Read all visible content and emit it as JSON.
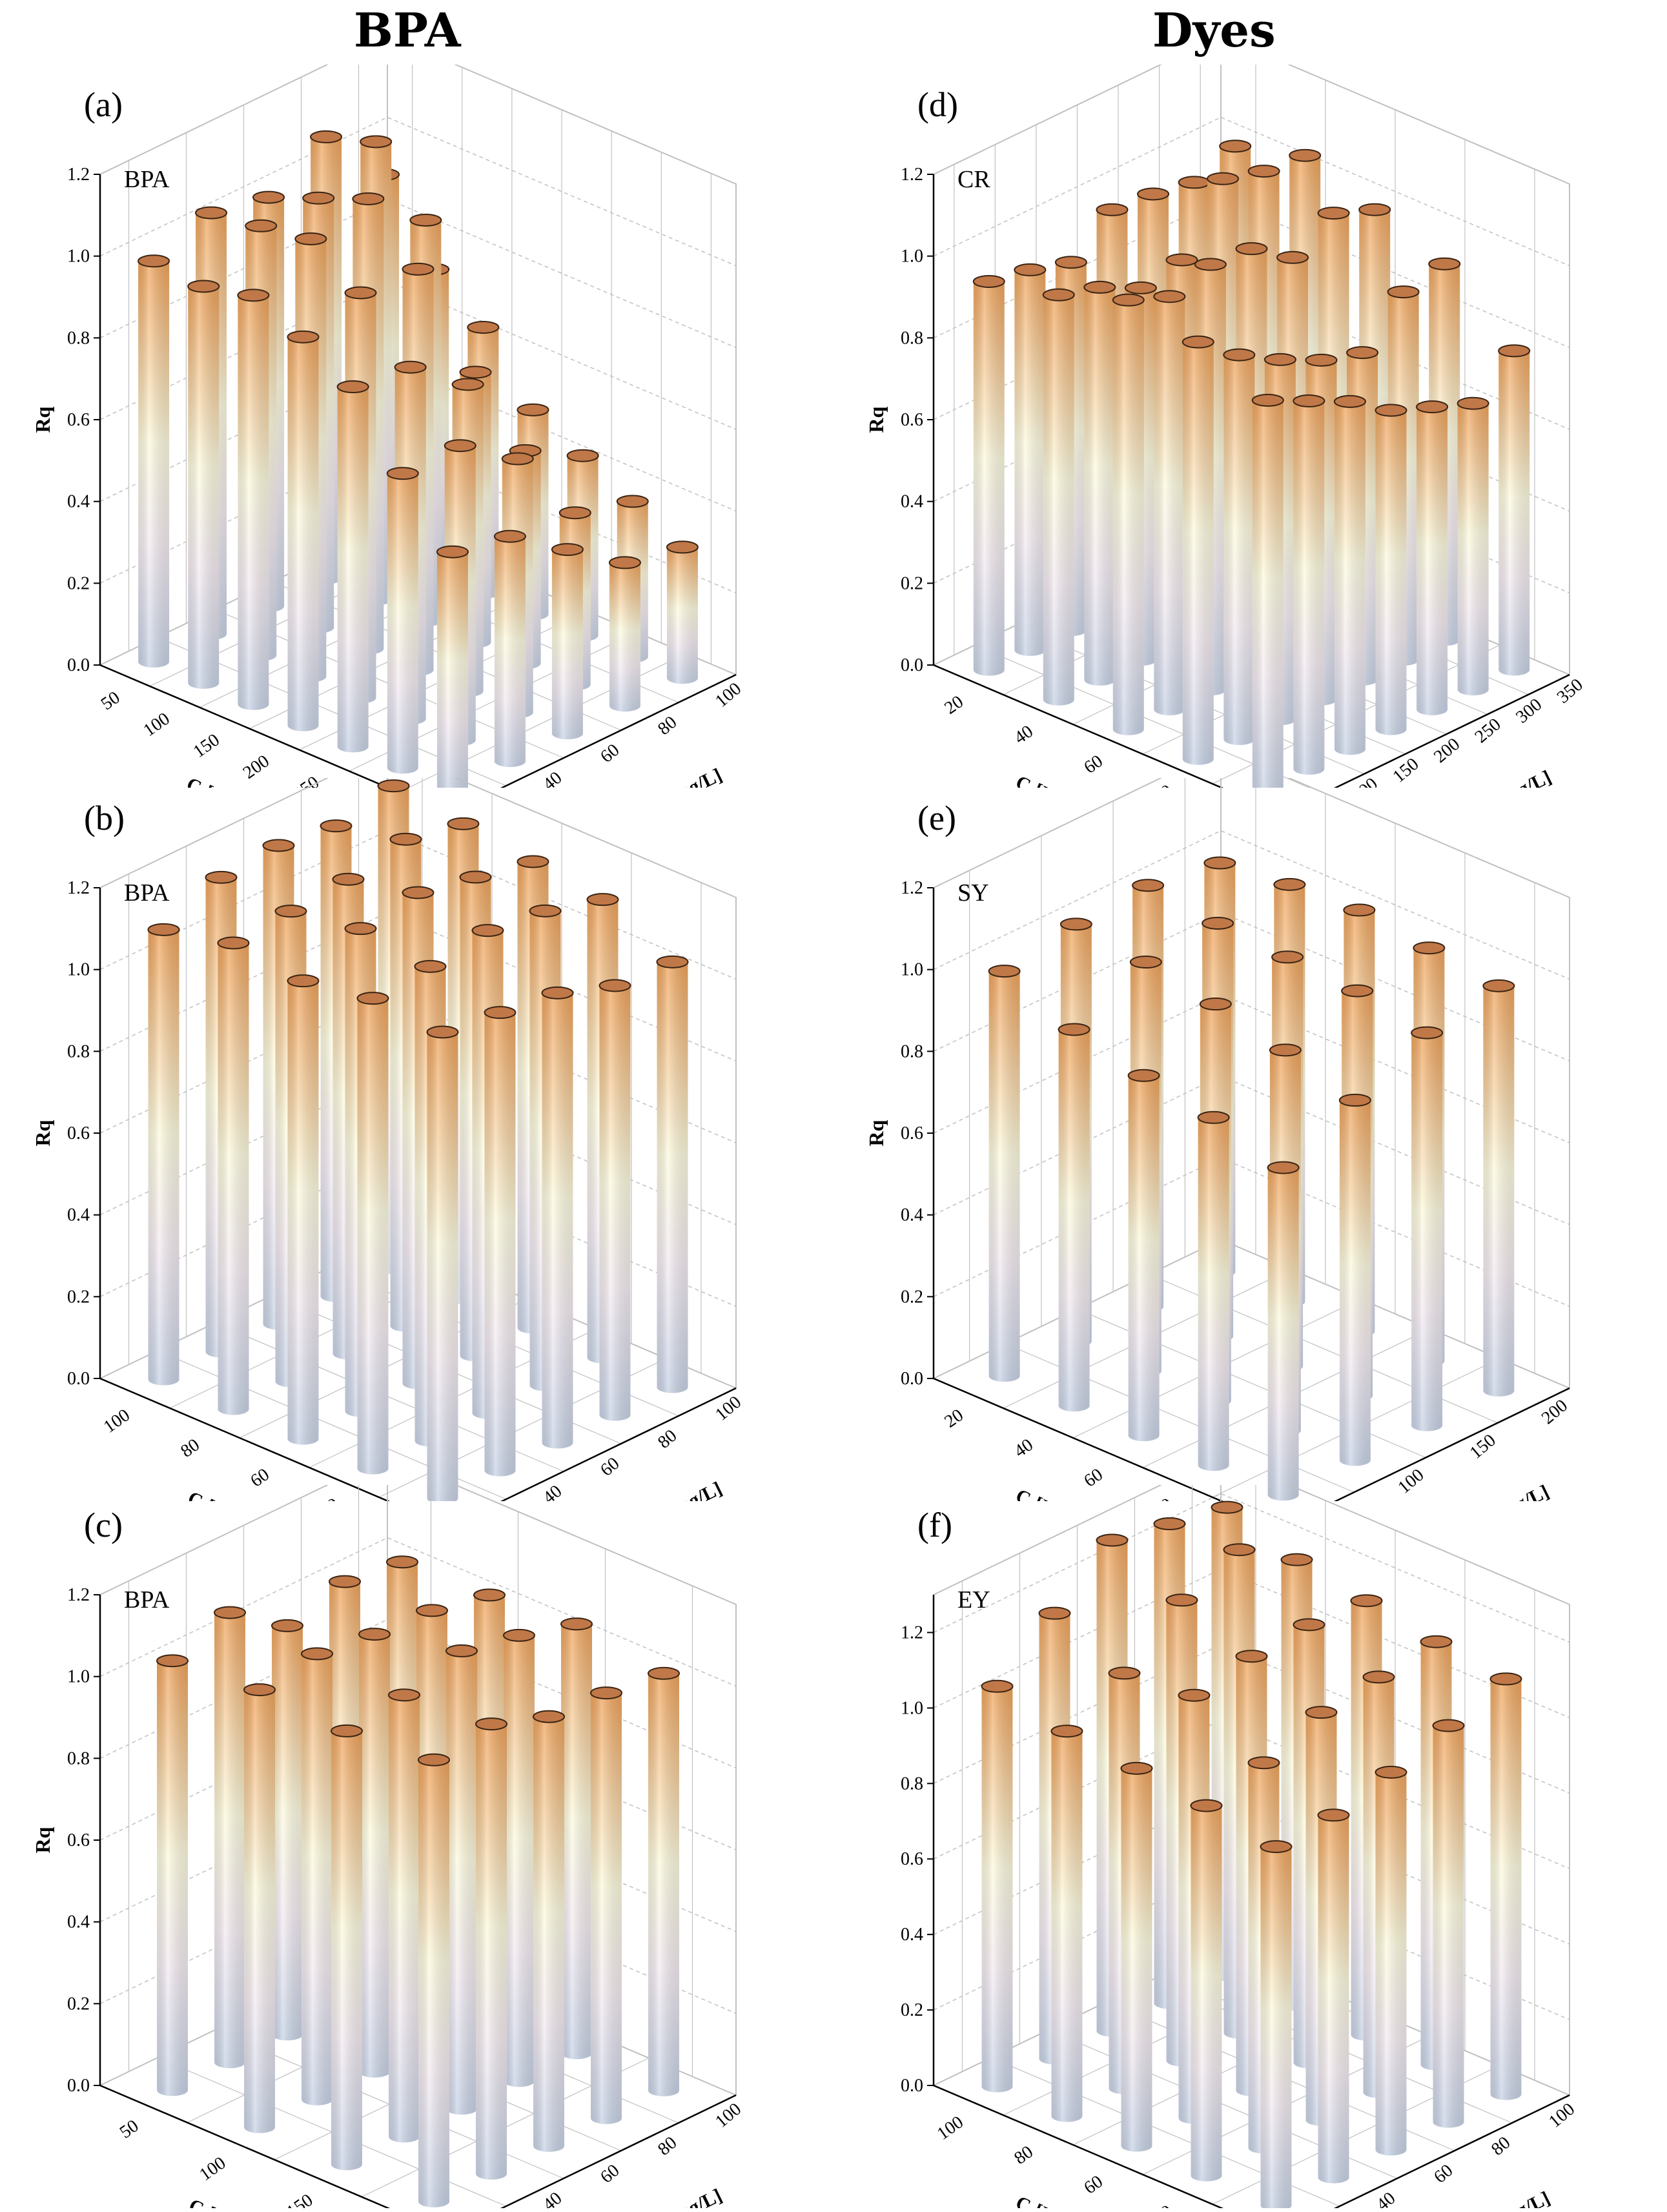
{
  "figure": {
    "col_left_title": "BPA",
    "col_right_title": "Dyes"
  },
  "colors": {
    "bar_top": "#f0a45c",
    "bar_mid": "#fdfbe0",
    "bar_low": "#f4ecf2",
    "bar_bottom": "#c8d3e6",
    "cap_fill": "#c07848",
    "axis": "#000000",
    "grid": "#c0c0c0"
  },
  "chart_data": [
    {
      "id": "a",
      "type": "bar3d-cylinder",
      "label": "(a)",
      "series_label": "BPA",
      "zlabel": "Rq",
      "zlim": [
        0,
        1.2
      ],
      "zticks": [
        "0.0",
        "0.2",
        "0.4",
        "0.6",
        "0.8",
        "1.0",
        "1.2"
      ],
      "xlabel": "C₀[CR,mg/L]",
      "xticks": [
        "50",
        "100",
        "150",
        "200",
        "250",
        "300",
        "350"
      ],
      "ylabel": "C₀[BPA,mg/L]",
      "yticks": [
        "20",
        "40",
        "60",
        "80",
        "100"
      ],
      "values": [
        [
          0.98,
          0.97,
          1.0,
          0.95,
          0.88,
          0.72,
          0.58
        ],
        [
          1.03,
          1.05,
          1.07,
          0.99,
          0.86,
          0.72,
          0.55
        ],
        [
          1.0,
          1.05,
          1.1,
          0.98,
          0.75,
          0.62,
          0.45
        ],
        [
          1.08,
          1.12,
          0.98,
          0.66,
          0.52,
          0.42,
          0.35
        ],
        [
          0.92,
          0.74,
          0.65,
          0.5,
          0.44,
          0.38,
          0.32
        ]
      ]
    },
    {
      "id": "d",
      "type": "bar3d-cylinder",
      "label": "(d)",
      "series_label": "CR",
      "zlabel": "Rq",
      "zlim": [
        0,
        1.2
      ],
      "zticks": [
        "0.0",
        "0.2",
        "0.4",
        "0.6",
        "0.8",
        "1.0",
        "1.2"
      ],
      "xlabel": "C₀[BPA,mg/L]",
      "xticks": [
        "20",
        "40",
        "60",
        "80",
        "100"
      ],
      "ylabel": "C₀[CR,mg/L]",
      "yticks": [
        "50",
        "100",
        "150",
        "200",
        "250",
        "300",
        "350"
      ],
      "values": [
        [
          0.95,
          0.99,
          1.05,
          1.02,
          0.95
        ],
        [
          0.93,
          0.96,
          1.01,
          0.94,
          0.9
        ],
        [
          0.9,
          0.91,
          1.04,
          0.88,
          0.85
        ],
        [
          0.98,
          0.93,
          1.03,
          0.83,
          0.78
        ],
        [
          0.97,
          1.08,
          0.96,
          0.8,
          0.74
        ],
        [
          0.95,
          1.05,
          1.02,
          0.9,
          0.7
        ],
        [
          0.99,
          1.04,
          0.98,
          0.92,
          0.78
        ]
      ]
    },
    {
      "id": "b",
      "type": "bar3d-cylinder",
      "label": "(b)",
      "series_label": "BPA",
      "zlabel": "Rq",
      "zlim": [
        0,
        1.2
      ],
      "zticks": [
        "0.0",
        "0.2",
        "0.4",
        "0.6",
        "0.8",
        "1.0",
        "1.2"
      ],
      "xlabel": "C₀[EY,mg/L]",
      "xticks": [
        "100",
        "80",
        "60",
        "40",
        "20"
      ],
      "ylabel": "C₀[BPA,mg/L]",
      "yticks": [
        "20",
        "40",
        "60",
        "80",
        "100"
      ],
      "values": [
        [
          1.1,
          1.14,
          1.12,
          1.15,
          1.14
        ],
        [
          1.16,
          1.15,
          1.18,
          1.16,
          1.12
        ],
        [
          1.17,
          1.16,
          1.2,
          1.18,
          1.1
        ],
        [
          1.15,
          1.19,
          1.17,
          1.16,
          1.05
        ],
        [
          1.18,
          1.16,
          1.14,
          1.12,
          1.04
        ]
      ]
    },
    {
      "id": "e",
      "type": "bar3d-cylinder",
      "label": "(e)",
      "series_label": "SY",
      "zlabel": "Rq",
      "zlim": [
        0,
        1.2
      ],
      "zticks": [
        "0.0",
        "0.2",
        "0.4",
        "0.6",
        "0.8",
        "1.0",
        "1.2"
      ],
      "xlabel": "C₀[BPA,mg/L]",
      "xticks": [
        "20",
        "40",
        "60",
        "80",
        "100"
      ],
      "ylabel": "C₀[SY,mg/L]",
      "yticks": [
        "50",
        "100",
        "150",
        "200"
      ],
      "values": [
        [
          0.99,
          0.92,
          0.88,
          0.85,
          0.8
        ],
        [
          1.02,
          1.0,
          0.97,
          0.93,
          0.88
        ],
        [
          1.03,
          1.01,
          1.0,
          0.99,
          0.96
        ],
        [
          1.0,
          1.02,
          1.03,
          1.01,
          0.99
        ]
      ]
    },
    {
      "id": "c",
      "type": "bar3d-cylinder",
      "label": "(c)",
      "series_label": "BPA",
      "zlabel": "Rq",
      "zlim": [
        0,
        1.2
      ],
      "zticks": [
        "0.0",
        "0.2",
        "0.4",
        "0.6",
        "0.8",
        "1.0",
        "1.2"
      ],
      "xlabel": "C₀[SY,mg/L]",
      "xticks": [
        "50",
        "100",
        "150",
        "200"
      ],
      "ylabel": "C₀[BPA,mg/L]",
      "yticks": [
        "20",
        "40",
        "60",
        "80",
        "100"
      ],
      "values": [
        [
          1.05,
          1.07,
          1.06,
          1.08
        ],
        [
          1.1,
          1.09,
          1.08,
          1.1
        ],
        [
          1.0,
          1.07,
          1.12,
          1.05
        ],
        [
          1.04,
          1.06,
          1.09,
          1.04
        ],
        [
          1.02,
          1.03,
          1.05,
          1.02
        ]
      ]
    },
    {
      "id": "f",
      "type": "bar3d-cylinder",
      "label": "(f)",
      "series_label": "EY",
      "zlabel": "",
      "zlim": [
        0,
        1.3
      ],
      "zticks": [
        "0.0",
        "0.2",
        "0.4",
        "0.6",
        "0.8",
        "1.0",
        "1.2"
      ],
      "xlabel": "C₀[BPA,mg/L]",
      "xticks": [
        "100",
        "80",
        "60",
        "40",
        "20"
      ],
      "ylabel": "C₀[EY,mg/L]",
      "yticks": [
        "20",
        "40",
        "60",
        "80",
        "100"
      ],
      "values": [
        [
          1.06,
          1.02,
          1.0,
          0.98,
          0.95
        ],
        [
          1.18,
          1.1,
          1.12,
          1.02,
          0.96
        ],
        [
          1.3,
          1.22,
          1.15,
          1.08,
          1.0
        ],
        [
          1.27,
          1.28,
          1.16,
          1.1,
          1.05
        ],
        [
          1.24,
          1.18,
          1.15,
          1.12,
          1.1
        ]
      ]
    }
  ]
}
